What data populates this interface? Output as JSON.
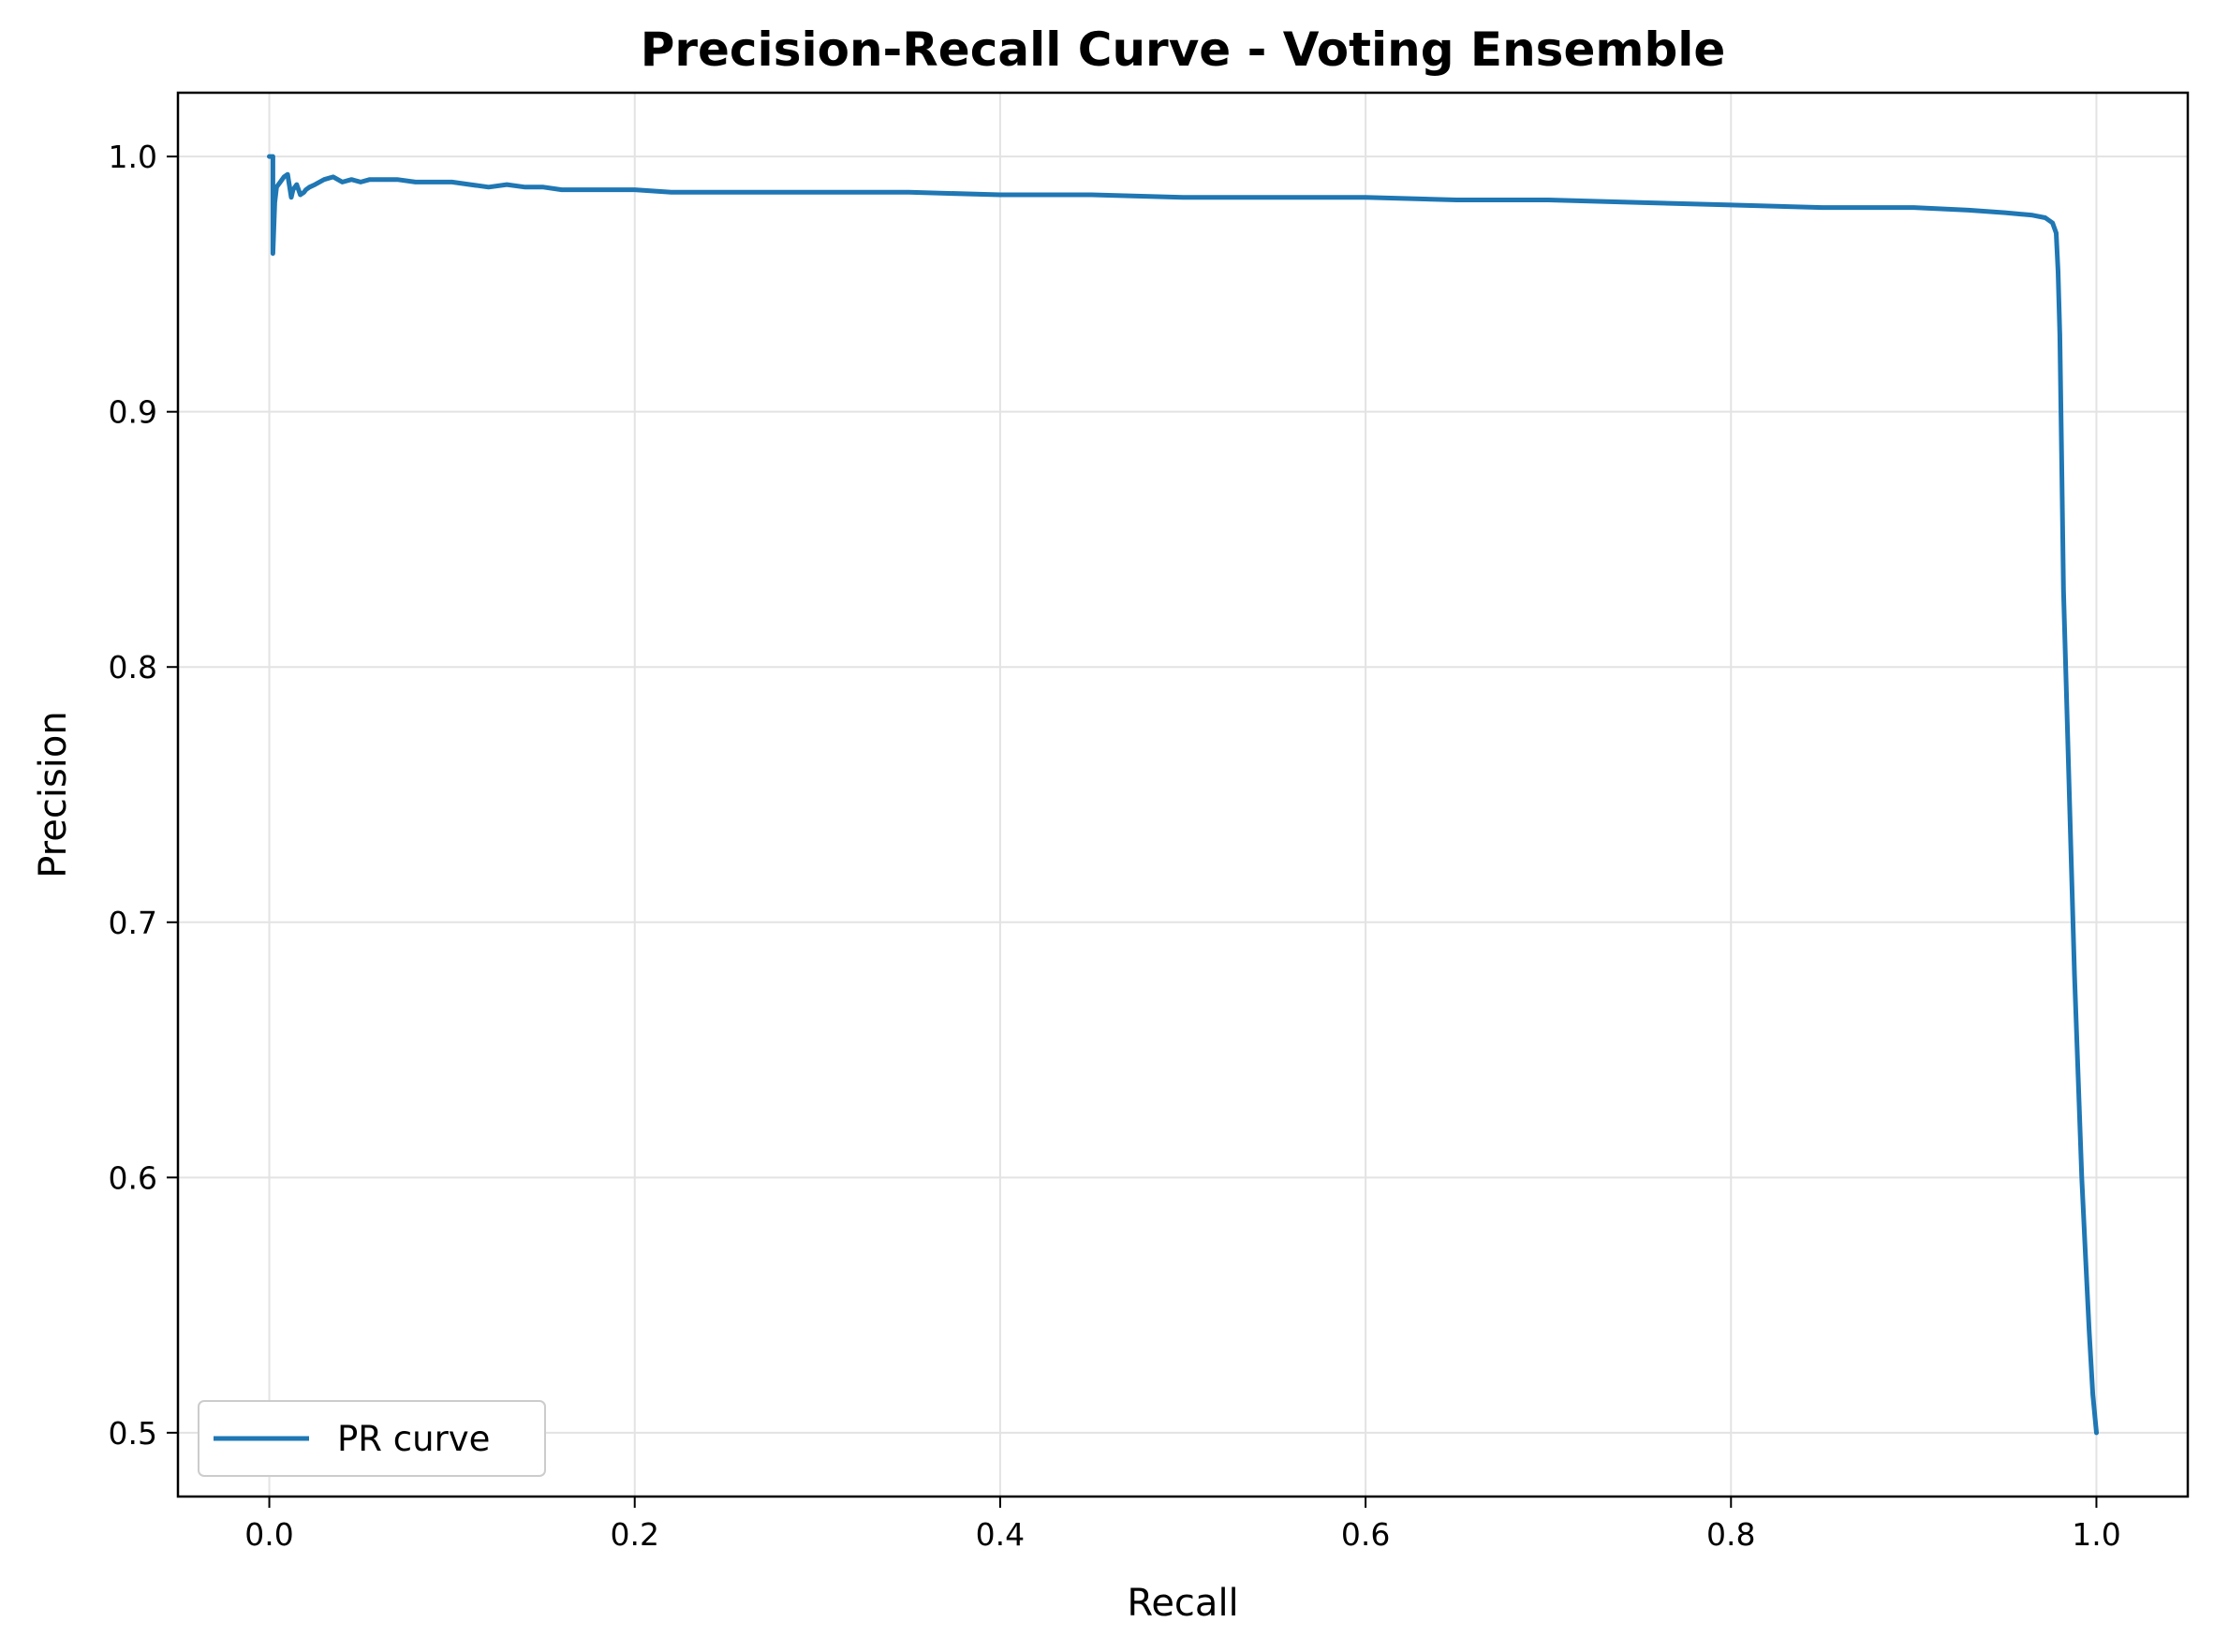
{
  "chart_data": {
    "type": "line",
    "title": "Precision-Recall Curve - Voting Ensemble",
    "xlabel": "Recall",
    "ylabel": "Precision",
    "xlim": [
      -0.05,
      1.05
    ],
    "ylim": [
      0.475,
      1.025
    ],
    "xticks": [
      0.0,
      0.2,
      0.4,
      0.6,
      0.8,
      1.0
    ],
    "xtick_labels": [
      "0.0",
      "0.2",
      "0.4",
      "0.6",
      "0.8",
      "1.0"
    ],
    "yticks": [
      0.5,
      0.6,
      0.7,
      0.8,
      0.9,
      1.0
    ],
    "ytick_labels": [
      "0.5",
      "0.6",
      "0.7",
      "0.8",
      "0.9",
      "1.0"
    ],
    "grid": true,
    "legend": {
      "position": "lower-left",
      "entries": [
        "PR curve"
      ]
    },
    "series": [
      {
        "name": "PR curve",
        "color": "#1f77b4",
        "x": [
          0.0,
          0.002,
          0.002,
          0.003,
          0.004,
          0.006,
          0.008,
          0.01,
          0.012,
          0.013,
          0.015,
          0.017,
          0.019,
          0.02,
          0.022,
          0.025,
          0.03,
          0.035,
          0.04,
          0.045,
          0.05,
          0.055,
          0.06,
          0.07,
          0.08,
          0.09,
          0.1,
          0.11,
          0.12,
          0.13,
          0.14,
          0.15,
          0.16,
          0.18,
          0.2,
          0.22,
          0.25,
          0.3,
          0.35,
          0.4,
          0.45,
          0.5,
          0.55,
          0.6,
          0.65,
          0.7,
          0.75,
          0.8,
          0.85,
          0.9,
          0.93,
          0.95,
          0.965,
          0.972,
          0.976,
          0.978,
          0.979,
          0.98,
          0.981,
          0.982,
          0.984,
          0.986,
          0.988,
          0.99,
          0.992,
          0.994,
          0.996,
          0.998,
          1.0
        ],
        "y": [
          1.0,
          1.0,
          0.962,
          0.982,
          0.988,
          0.99,
          0.992,
          0.993,
          0.984,
          0.987,
          0.989,
          0.985,
          0.986,
          0.987,
          0.988,
          0.989,
          0.991,
          0.992,
          0.99,
          0.991,
          0.99,
          0.991,
          0.991,
          0.991,
          0.99,
          0.99,
          0.99,
          0.989,
          0.988,
          0.989,
          0.988,
          0.988,
          0.987,
          0.987,
          0.987,
          0.986,
          0.986,
          0.986,
          0.986,
          0.985,
          0.985,
          0.984,
          0.984,
          0.984,
          0.983,
          0.983,
          0.982,
          0.981,
          0.98,
          0.98,
          0.979,
          0.978,
          0.977,
          0.976,
          0.974,
          0.97,
          0.955,
          0.93,
          0.88,
          0.83,
          0.78,
          0.73,
          0.68,
          0.64,
          0.6,
          0.57,
          0.54,
          0.515,
          0.5
        ]
      }
    ]
  }
}
